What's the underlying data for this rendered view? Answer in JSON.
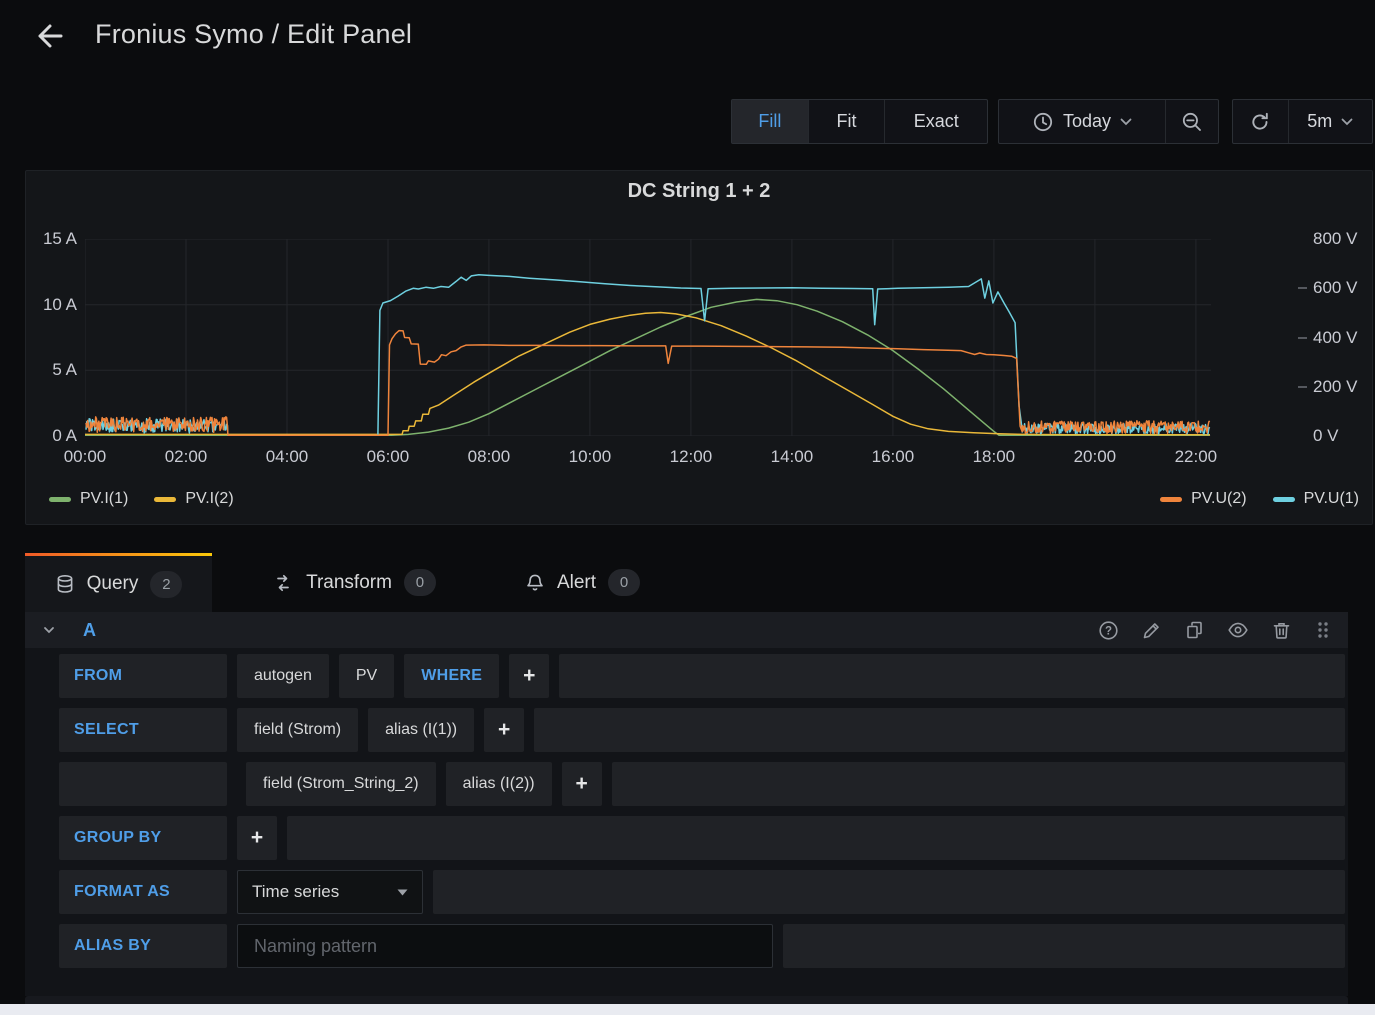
{
  "header": {
    "title": "Fronius Symo / Edit Panel"
  },
  "toolbar": {
    "size_modes": [
      {
        "label": "Fill",
        "active": true
      },
      {
        "label": "Fit",
        "active": false
      },
      {
        "label": "Exact",
        "active": false
      }
    ],
    "time_range": "Today",
    "refresh_interval": "5m"
  },
  "panel": {
    "title": "DC String 1 + 2"
  },
  "chart_data": {
    "type": "line",
    "title": "DC String 1 + 2",
    "x_range": [
      0,
      22.3
    ],
    "x_grid_hours": [
      0,
      2,
      4,
      6,
      8,
      10,
      12,
      14,
      16,
      18,
      20,
      22
    ],
    "x_ticks": [
      {
        "h": 0,
        "label": "00:00"
      },
      {
        "h": 2,
        "label": "02:00"
      },
      {
        "h": 4,
        "label": "04:00"
      },
      {
        "h": 6,
        "label": "06:00"
      },
      {
        "h": 8,
        "label": "08:00"
      },
      {
        "h": 10,
        "label": "10:00"
      },
      {
        "h": 12,
        "label": "12:00"
      },
      {
        "h": 14,
        "label": "14:00"
      },
      {
        "h": 16,
        "label": "16:00"
      },
      {
        "h": 18,
        "label": "18:00"
      },
      {
        "h": 20,
        "label": "20:00"
      },
      {
        "h": 22,
        "label": "22:00"
      }
    ],
    "left_axis": {
      "unit": "A",
      "range": [
        0,
        15
      ],
      "ticks": [
        {
          "v": 0,
          "label": "0 A"
        },
        {
          "v": 5,
          "label": "5 A"
        },
        {
          "v": 10,
          "label": "10 A"
        },
        {
          "v": 15,
          "label": "15 A"
        }
      ]
    },
    "right_axis": {
      "unit": "V",
      "range": [
        0,
        800
      ],
      "ticks": [
        {
          "v": 0,
          "label": "0 V",
          "dash": false
        },
        {
          "v": 200,
          "label": "200 V",
          "dash": true
        },
        {
          "v": 400,
          "label": "400 V",
          "dash": true
        },
        {
          "v": 600,
          "label": "600 V",
          "dash": true
        },
        {
          "v": 800,
          "label": "800 V",
          "dash": false
        }
      ]
    },
    "legend": {
      "left": [
        {
          "label": "PV.I(1)",
          "color": "#7EB26D"
        },
        {
          "label": "PV.I(2)",
          "color": "#EAB839"
        }
      ],
      "right": [
        {
          "label": "PV.U(2)",
          "color": "#EF843C"
        },
        {
          "label": "PV.U(1)",
          "color": "#6ED0E0"
        }
      ]
    },
    "series": [
      {
        "name": "PV.I(1)",
        "color": "#7EB26D",
        "axis": "left",
        "segments": [
          {
            "type": "line",
            "points": [
              [
                0,
                0.05
              ],
              [
                6.05,
                0.05
              ],
              [
                6.4,
                0.12
              ],
              [
                6.8,
                0.3
              ],
              [
                7.2,
                0.6
              ],
              [
                7.6,
                1.05
              ],
              [
                8.0,
                1.7
              ],
              [
                8.4,
                2.5
              ],
              [
                8.9,
                3.5
              ],
              [
                9.4,
                4.5
              ],
              [
                9.9,
                5.5
              ],
              [
                10.4,
                6.5
              ],
              [
                10.9,
                7.4
              ],
              [
                11.4,
                8.3
              ],
              [
                11.9,
                9.1
              ],
              [
                12.4,
                9.8
              ],
              [
                12.9,
                10.2
              ],
              [
                13.3,
                10.4
              ],
              [
                13.7,
                10.3
              ],
              [
                14.1,
                10.0
              ],
              [
                14.5,
                9.5
              ],
              [
                15.0,
                8.7
              ],
              [
                15.5,
                7.7
              ],
              [
                16.0,
                6.5
              ],
              [
                16.5,
                5.1
              ],
              [
                17.0,
                3.6
              ],
              [
                17.4,
                2.3
              ],
              [
                17.8,
                1.0
              ],
              [
                18.0,
                0.35
              ],
              [
                18.1,
                0.06
              ],
              [
                19.0,
                0.04
              ],
              [
                22.28,
                0.04
              ]
            ]
          }
        ]
      },
      {
        "name": "PV.I(2)",
        "color": "#EAB839",
        "axis": "left",
        "segments": [
          {
            "type": "line",
            "points": [
              [
                0,
                0.12
              ],
              [
                6.28,
                0.12
              ],
              [
                6.3,
                0.4
              ],
              [
                6.4,
                0.4
              ],
              [
                6.42,
                0.75
              ],
              [
                6.52,
                0.75
              ],
              [
                6.55,
                1.15
              ],
              [
                6.66,
                1.15
              ],
              [
                6.69,
                1.65
              ],
              [
                6.8,
                1.65
              ],
              [
                6.83,
                2.1
              ],
              [
                7.0,
                2.35
              ],
              [
                7.3,
                3.1
              ],
              [
                7.7,
                4.1
              ],
              [
                8.1,
                5.0
              ],
              [
                8.6,
                6.1
              ],
              [
                9.1,
                7.0
              ],
              [
                9.6,
                7.9
              ],
              [
                10.0,
                8.5
              ],
              [
                10.4,
                8.9
              ],
              [
                10.8,
                9.2
              ],
              [
                11.1,
                9.35
              ],
              [
                11.4,
                9.4
              ],
              [
                11.7,
                9.3
              ],
              [
                12.1,
                9.0
              ],
              [
                12.6,
                8.4
              ],
              [
                13.1,
                7.6
              ],
              [
                13.6,
                6.7
              ],
              [
                14.1,
                5.7
              ],
              [
                14.6,
                4.6
              ],
              [
                15.1,
                3.5
              ],
              [
                15.6,
                2.4
              ],
              [
                16.0,
                1.5
              ],
              [
                16.35,
                0.9
              ],
              [
                16.7,
                0.55
              ],
              [
                17.1,
                0.35
              ],
              [
                17.6,
                0.25
              ],
              [
                18.1,
                0.17
              ],
              [
                18.6,
                0.12
              ],
              [
                19.5,
                0.1
              ],
              [
                22.28,
                0.1
              ]
            ]
          }
        ]
      },
      {
        "name": "PV.U(1)",
        "color": "#6ED0E0",
        "axis": "right",
        "segments": [
          {
            "type": "noise",
            "x0": 0.02,
            "x1": 2.83,
            "lo": 12,
            "hi": 70,
            "seed": 7
          },
          {
            "type": "line",
            "points": [
              [
                2.83,
                2
              ],
              [
                5.8,
                2
              ],
              [
                5.84,
                510
              ],
              [
                5.9,
                540
              ],
              [
                6.05,
                550
              ],
              [
                6.2,
                568
              ],
              [
                6.35,
                588
              ],
              [
                6.5,
                600
              ],
              [
                6.6,
                597
              ],
              [
                6.75,
                604
              ],
              [
                6.9,
                600
              ],
              [
                7.05,
                607
              ],
              [
                7.2,
                604
              ],
              [
                7.35,
                628
              ],
              [
                7.45,
                645
              ],
              [
                7.55,
                632
              ],
              [
                7.65,
                650
              ],
              [
                7.8,
                655
              ],
              [
                8.0,
                652
              ],
              [
                8.4,
                648
              ],
              [
                8.8,
                641
              ],
              [
                9.3,
                634
              ],
              [
                9.8,
                626
              ],
              [
                10.3,
                618
              ],
              [
                10.8,
                611
              ],
              [
                11.3,
                606
              ],
              [
                11.8,
                601
              ],
              [
                12.2,
                599
              ],
              [
                12.27,
                468
              ],
              [
                12.34,
                598
              ],
              [
                12.8,
                600
              ],
              [
                13.4,
                601
              ],
              [
                14.0,
                602
              ],
              [
                14.6,
                600
              ],
              [
                15.2,
                599
              ],
              [
                15.6,
                598
              ],
              [
                15.64,
                452
              ],
              [
                15.7,
                597
              ],
              [
                16.1,
                600
              ],
              [
                16.6,
                602
              ],
              [
                17.1,
                604
              ],
              [
                17.5,
                607
              ],
              [
                17.75,
                638
              ],
              [
                17.82,
                560
              ],
              [
                17.9,
                630
              ],
              [
                17.98,
                540
              ],
              [
                18.08,
                585
              ],
              [
                18.2,
                540
              ],
              [
                18.3,
                505
              ],
              [
                18.42,
                460
              ],
              [
                18.5,
                120
              ],
              [
                18.56,
                25
              ]
            ]
          },
          {
            "type": "noise",
            "x0": 18.56,
            "x1": 22.28,
            "lo": 8,
            "hi": 52,
            "seed": 11
          }
        ]
      },
      {
        "name": "PV.U(2)",
        "color": "#EF843C",
        "axis": "right",
        "segments": [
          {
            "type": "noise",
            "x0": 0.02,
            "x1": 2.83,
            "lo": 15,
            "hi": 78,
            "seed": 3
          },
          {
            "type": "line",
            "points": [
              [
                2.83,
                3
              ],
              [
                6.0,
                3
              ],
              [
                6.03,
                370
              ],
              [
                6.08,
                395
              ],
              [
                6.15,
                415
              ],
              [
                6.22,
                428
              ],
              [
                6.3,
                427
              ],
              [
                6.33,
                400
              ],
              [
                6.42,
                399
              ],
              [
                6.46,
                374
              ],
              [
                6.6,
                373
              ],
              [
                6.64,
                292
              ],
              [
                6.76,
                291
              ],
              [
                6.8,
                305
              ],
              [
                6.92,
                300
              ],
              [
                7.0,
                312
              ],
              [
                7.06,
                330
              ],
              [
                7.15,
                326
              ],
              [
                7.25,
                342
              ],
              [
                7.35,
                347
              ],
              [
                7.45,
                362
              ],
              [
                7.55,
                369
              ],
              [
                7.9,
                370
              ],
              [
                8.4,
                368
              ],
              [
                9.0,
                368
              ],
              [
                9.6,
                367
              ],
              [
                10.2,
                367
              ],
              [
                10.9,
                366
              ],
              [
                11.5,
                366
              ],
              [
                11.55,
                295
              ],
              [
                11.62,
                365
              ],
              [
                12.2,
                365
              ],
              [
                12.9,
                364
              ],
              [
                13.6,
                363
              ],
              [
                14.3,
                362
              ],
              [
                15.0,
                360
              ],
              [
                15.6,
                357
              ],
              [
                16.1,
                354
              ],
              [
                16.6,
                351
              ],
              [
                17.0,
                349
              ],
              [
                17.35,
                347
              ],
              [
                17.5,
                338
              ],
              [
                17.62,
                331
              ],
              [
                17.72,
                337
              ],
              [
                17.85,
                331
              ],
              [
                18.0,
                330
              ],
              [
                18.2,
                327
              ],
              [
                18.35,
                324
              ],
              [
                18.45,
                315
              ],
              [
                18.52,
                40
              ],
              [
                18.56,
                18
              ]
            ]
          },
          {
            "type": "noise",
            "x0": 18.56,
            "x1": 22.28,
            "lo": 10,
            "hi": 62,
            "seed": 5
          }
        ]
      }
    ]
  },
  "tabs": [
    {
      "label": "Query",
      "count": "2",
      "active": true
    },
    {
      "label": "Transform",
      "count": "0",
      "active": false
    },
    {
      "label": "Alert",
      "count": "0",
      "active": false
    }
  ],
  "query": {
    "ref_id": "A",
    "plus": "+",
    "rows": {
      "from": {
        "label": "FROM",
        "measurement_policy": "autogen",
        "measurement": "PV",
        "where_label": "WHERE"
      },
      "select": {
        "label": "SELECT",
        "line1": {
          "field": "field (Strom)",
          "alias": "alias (I(1))"
        },
        "line2": {
          "field": "field (Strom_String_2)",
          "alias": "alias (I(2))"
        }
      },
      "group_by": {
        "label": "GROUP BY"
      },
      "format_as": {
        "label": "FORMAT AS",
        "value": "Time series"
      },
      "alias_by": {
        "label": "ALIAS BY",
        "placeholder": "Naming pattern"
      }
    }
  }
}
